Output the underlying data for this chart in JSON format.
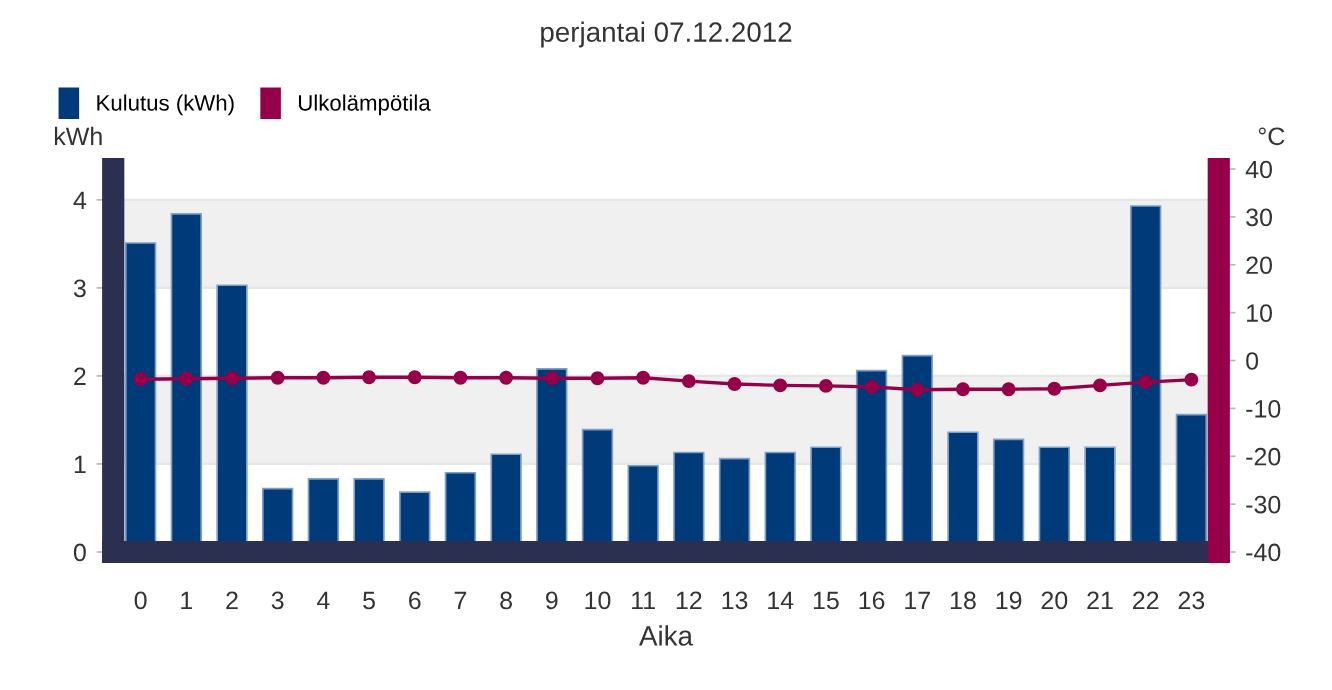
{
  "chart_data": {
    "type": "bar",
    "title": "perjantai 07.12.2012",
    "xlabel": "Aika",
    "ylabel": "kWh",
    "y2label": "°C",
    "categories": [
      "0",
      "1",
      "2",
      "3",
      "4",
      "5",
      "6",
      "7",
      "8",
      "9",
      "10",
      "11",
      "12",
      "13",
      "14",
      "15",
      "16",
      "17",
      "18",
      "19",
      "20",
      "21",
      "22",
      "23"
    ],
    "series": [
      {
        "name": "Kulutus (kWh)",
        "color": "#003a78",
        "values": [
          3.51,
          3.84,
          3.03,
          0.72,
          0.83,
          0.83,
          0.68,
          0.9,
          1.11,
          2.08,
          1.39,
          0.98,
          1.13,
          1.06,
          1.13,
          1.19,
          2.06,
          2.23,
          1.36,
          1.28,
          1.19,
          1.19,
          3.93,
          1.56
        ]
      },
      {
        "name": "Ulkolämpötila",
        "color": "#960048",
        "type": "line",
        "axis": "y2",
        "marker": "circle",
        "values": [
          -3.9,
          -3.8,
          -3.7,
          -3.6,
          -3.6,
          -3.5,
          -3.5,
          -3.6,
          -3.6,
          -3.7,
          -3.7,
          -3.6,
          -4.3,
          -4.9,
          -5.2,
          -5.3,
          -5.5,
          -6.1,
          -6.0,
          -6.0,
          -5.9,
          -5.2,
          -4.5,
          -4.0
        ]
      }
    ],
    "ylim": [
      0,
      4.35
    ],
    "yticks": [
      0,
      1,
      2,
      3,
      4
    ],
    "y2lim": [
      -40,
      40
    ],
    "y2ticks": [
      -40,
      -30,
      -20,
      -10,
      0,
      10,
      20,
      30,
      40
    ],
    "grid": "y",
    "legend": "top left"
  }
}
